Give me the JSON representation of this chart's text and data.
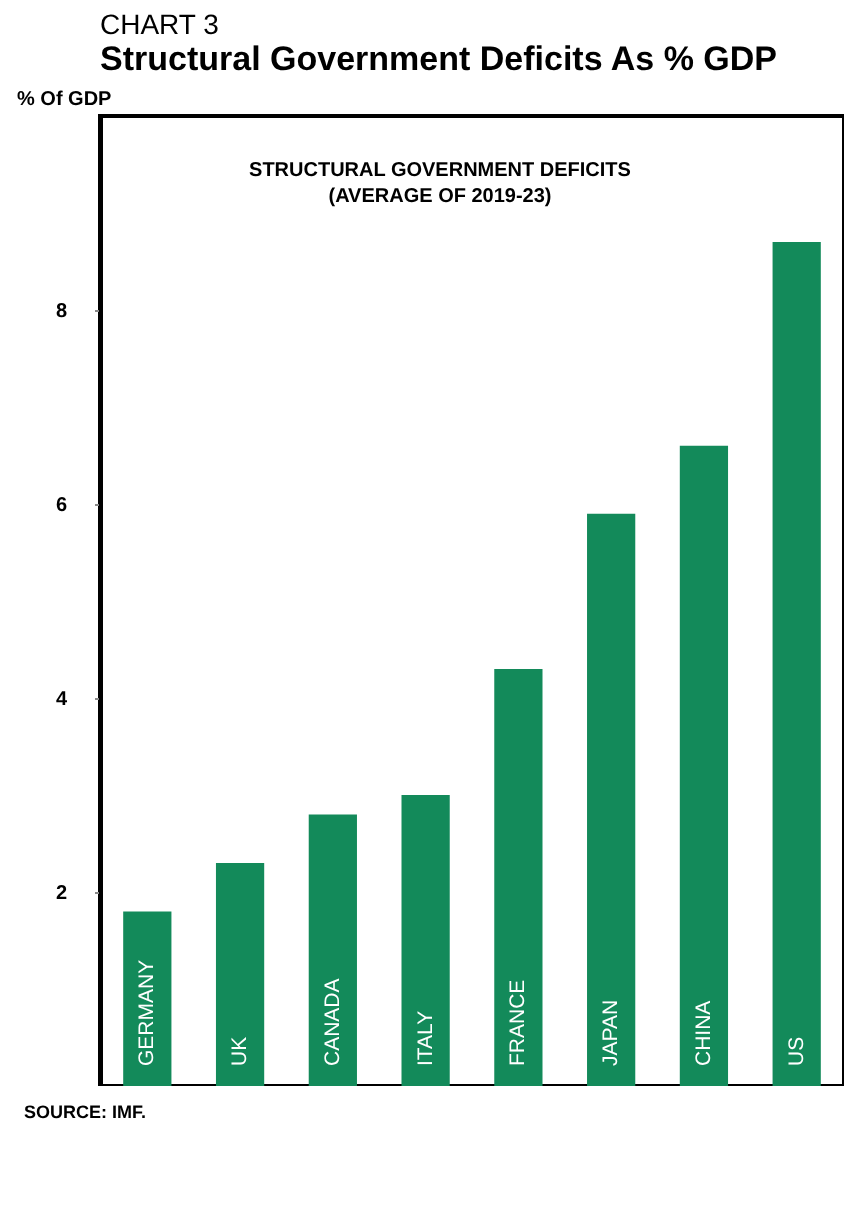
{
  "chart_data": {
    "type": "bar",
    "title": "CHART 3",
    "subtitle": "Structural Government Deficits As % GDP",
    "ylabel": "% Of GDP",
    "annotations": [
      "STRUCTURAL GOVERNMENT DEFICITS",
      "(AVERAGE OF 2019-23)",
      "SOURCE: IMF."
    ],
    "categories": [
      "GERMANY",
      "UK",
      "CANADA",
      "ITALY",
      "FRANCE",
      "JAPAN",
      "CHINA",
      "US"
    ],
    "values": [
      1.8,
      2.3,
      2.8,
      3.0,
      4.3,
      5.9,
      6.6,
      8.7
    ],
    "color": "#138a5a",
    "ylim": [
      0,
      10
    ],
    "yticks": [
      2,
      4,
      6,
      8
    ]
  }
}
